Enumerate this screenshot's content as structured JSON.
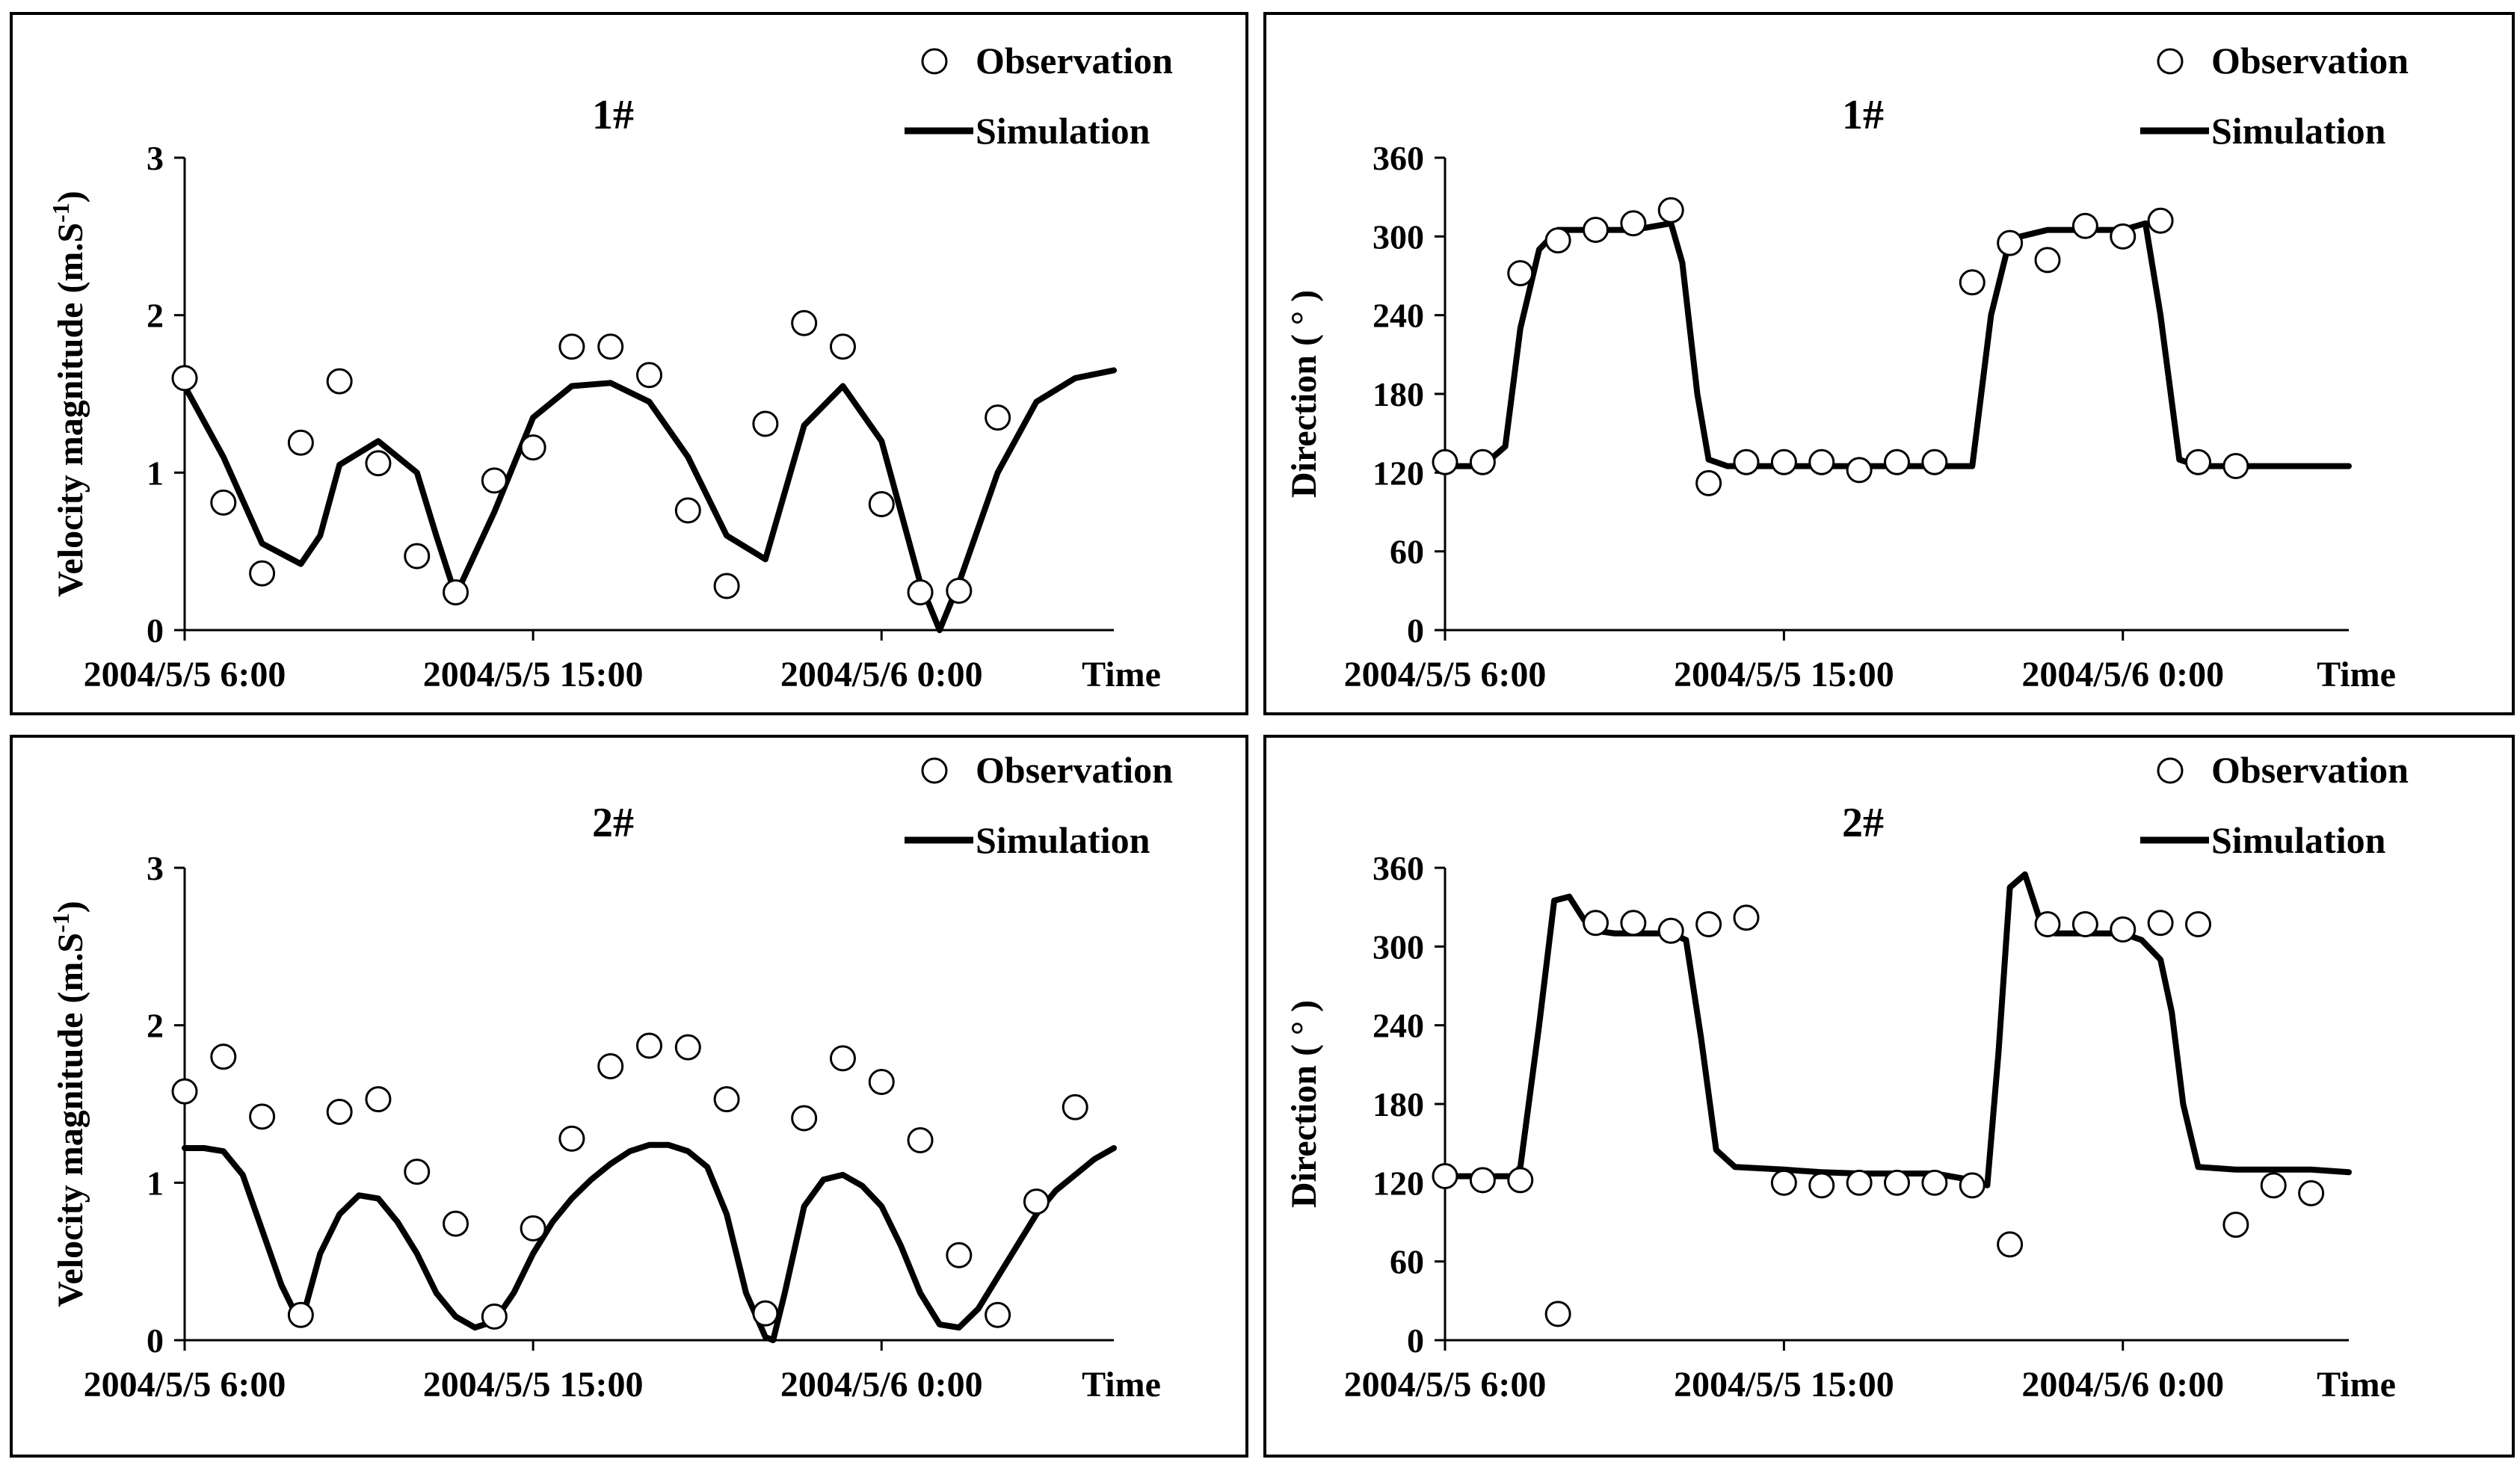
{
  "figure": {
    "x_labels": [
      "2004/5/5 6:00",
      "2004/5/5 15:00",
      "2004/5/6 0:00",
      "Time"
    ],
    "legend": {
      "observation": "Observation",
      "simulation": "Simulation"
    }
  },
  "chart_data": [
    {
      "type": "line",
      "title": "1#",
      "ylabel": "Velocity magnitude (m.S",
      "ylabel_sup": "-1",
      "ylabel_end": ")",
      "yticks": [
        0,
        1,
        2,
        3
      ],
      "ylim": [
        0,
        3
      ],
      "xlim": [
        6,
        30
      ],
      "xticks": [
        6,
        15,
        24
      ],
      "xtick_labels": [
        "2004/5/5 6:00",
        "2004/5/5 15:00",
        "2004/5/6 0:00"
      ],
      "xlabel": "Time",
      "series": [
        {
          "name": "Observation",
          "kind": "scatter",
          "x": [
            6,
            7,
            8,
            9,
            10,
            11,
            12,
            13,
            14,
            15,
            16,
            17,
            18,
            19,
            20,
            21,
            22,
            23,
            24,
            25,
            26,
            27
          ],
          "y": [
            1.6,
            0.81,
            0.36,
            1.19,
            1.58,
            1.06,
            0.47,
            0.24,
            0.95,
            1.16,
            1.8,
            1.8,
            1.62,
            0.76,
            0.28,
            1.31,
            1.95,
            1.8,
            0.8,
            0.24,
            0.25,
            1.35
          ]
        },
        {
          "name": "Simulation",
          "kind": "line",
          "x": [
            6,
            7,
            8,
            9,
            9.5,
            10,
            11,
            12,
            12.5,
            13,
            14,
            15,
            16,
            17,
            18,
            19,
            20,
            21,
            22,
            23,
            24,
            25,
            25.5,
            26,
            27,
            28,
            29,
            30
          ],
          "y": [
            1.55,
            1.1,
            0.55,
            0.42,
            0.6,
            1.05,
            1.2,
            1.0,
            0.6,
            0.22,
            0.75,
            1.35,
            1.55,
            1.57,
            1.45,
            1.1,
            0.6,
            0.45,
            1.3,
            1.55,
            1.2,
            0.3,
            0.0,
            0.3,
            1.0,
            1.45,
            1.6,
            1.65
          ]
        }
      ]
    },
    {
      "type": "line",
      "title": "1#",
      "ylabel": "Direction ( ° )",
      "yticks": [
        0,
        60,
        120,
        180,
        240,
        300,
        360
      ],
      "ylim": [
        0,
        360
      ],
      "xlim": [
        6,
        30
      ],
      "xticks": [
        6,
        15,
        24
      ],
      "xtick_labels": [
        "2004/5/5 6:00",
        "2004/5/5 15:00",
        "2004/5/6 0:00"
      ],
      "xlabel": "Time",
      "series": [
        {
          "name": "Observation",
          "kind": "scatter",
          "x": [
            6,
            7,
            8,
            9,
            10,
            11,
            12,
            13,
            14,
            15,
            16,
            17,
            18,
            19,
            20,
            21,
            22,
            23,
            24,
            25,
            26,
            27
          ],
          "y": [
            128,
            128,
            272,
            297,
            305,
            310,
            320,
            112,
            128,
            128,
            128,
            122,
            128,
            128,
            265,
            295,
            282,
            308,
            300,
            312,
            128,
            125
          ]
        },
        {
          "name": "Simulation",
          "kind": "line",
          "x": [
            6,
            7,
            7.6,
            8,
            8.5,
            9,
            10,
            11,
            12,
            12.3,
            12.7,
            13,
            13.5,
            14,
            15,
            16,
            17,
            18,
            19,
            20,
            20.5,
            21,
            22,
            23,
            24,
            24.6,
            25,
            25.5,
            26,
            27,
            28,
            29,
            30
          ],
          "y": [
            125,
            125,
            140,
            230,
            290,
            305,
            305,
            305,
            310,
            280,
            180,
            130,
            125,
            125,
            125,
            125,
            125,
            125,
            125,
            125,
            240,
            298,
            305,
            305,
            305,
            310,
            240,
            130,
            125,
            125,
            125,
            125,
            125
          ]
        }
      ]
    },
    {
      "type": "line",
      "title": "2#",
      "ylabel": "Velocity magnitude (m.S",
      "ylabel_sup": "-1",
      "ylabel_end": ")",
      "yticks": [
        0,
        1,
        2,
        3
      ],
      "ylim": [
        0,
        3
      ],
      "xlim": [
        6,
        30
      ],
      "xticks": [
        6,
        15,
        24
      ],
      "xtick_labels": [
        "2004/5/5 6:00",
        "2004/5/5 15:00",
        "2004/5/6 0:00"
      ],
      "xlabel": "Time",
      "series": [
        {
          "name": "Observation",
          "kind": "scatter",
          "x": [
            6,
            7,
            8,
            9,
            10,
            11,
            12,
            13,
            14,
            15,
            16,
            17,
            18,
            19,
            20,
            21,
            22,
            23,
            24,
            25,
            26,
            27,
            28,
            29
          ],
          "y": [
            1.58,
            1.8,
            1.42,
            0.16,
            1.45,
            1.53,
            1.07,
            0.74,
            0.15,
            0.71,
            1.28,
            1.74,
            1.87,
            1.86,
            1.53,
            0.17,
            1.41,
            1.79,
            1.64,
            1.27,
            0.54,
            0.16,
            0.88,
            1.48
          ]
        },
        {
          "name": "Simulation",
          "kind": "line",
          "x": [
            6,
            6.5,
            7,
            7.5,
            8,
            8.5,
            9,
            9.5,
            10,
            10.5,
            11,
            11.5,
            12,
            12.5,
            13,
            13.5,
            14,
            14.5,
            15,
            15.5,
            16,
            16.5,
            17,
            17.5,
            18,
            18.5,
            19,
            19.5,
            20,
            20.5,
            21,
            21.2,
            21.5,
            22,
            22.5,
            23,
            23.5,
            24,
            24.5,
            25,
            25.5,
            26,
            26.5,
            27,
            27.5,
            28,
            28.5,
            29,
            29.5,
            30
          ],
          "y": [
            1.22,
            1.22,
            1.2,
            1.05,
            0.7,
            0.35,
            0.1,
            0.55,
            0.8,
            0.92,
            0.9,
            0.75,
            0.55,
            0.3,
            0.15,
            0.08,
            0.12,
            0.3,
            0.55,
            0.75,
            0.9,
            1.02,
            1.12,
            1.2,
            1.24,
            1.24,
            1.2,
            1.1,
            0.8,
            0.3,
            0.02,
            0.0,
            0.3,
            0.85,
            1.02,
            1.05,
            0.98,
            0.85,
            0.6,
            0.3,
            0.1,
            0.08,
            0.2,
            0.4,
            0.6,
            0.8,
            0.95,
            1.05,
            1.15,
            1.22
          ]
        }
      ]
    },
    {
      "type": "line",
      "title": "2#",
      "ylabel": "Direction ( ° )",
      "yticks": [
        0,
        60,
        120,
        180,
        240,
        300,
        360
      ],
      "ylim": [
        0,
        360
      ],
      "xlim": [
        6,
        30
      ],
      "xticks": [
        6,
        15,
        24
      ],
      "xtick_labels": [
        "2004/5/5 6:00",
        "2004/5/5 15:00",
        "2004/5/6 0:00"
      ],
      "xlabel": "Time",
      "series": [
        {
          "name": "Observation",
          "kind": "scatter",
          "x": [
            6,
            7,
            8,
            9,
            10,
            11,
            12,
            13,
            14,
            15,
            16,
            17,
            18,
            19,
            20,
            21,
            22,
            23,
            24,
            25,
            26,
            27,
            28,
            29
          ],
          "y": [
            125,
            122,
            122,
            20,
            318,
            318,
            312,
            317,
            322,
            120,
            118,
            120,
            120,
            120,
            118,
            73,
            317,
            317,
            313,
            318,
            317,
            88,
            118,
            112
          ]
        },
        {
          "name": "Simulation",
          "kind": "line",
          "x": [
            6,
            7,
            7.8,
            8,
            8.5,
            8.9,
            9.3,
            9.7,
            10,
            10.5,
            11,
            12,
            12.4,
            12.8,
            13.2,
            13.7,
            15,
            16,
            17,
            18,
            19,
            20,
            20.4,
            20.7,
            21,
            21.4,
            21.8,
            22.2,
            23,
            24,
            24.5,
            25,
            25.3,
            25.6,
            26,
            27,
            28,
            29,
            30
          ],
          "y": [
            125,
            125,
            125,
            132,
            240,
            335,
            338,
            320,
            312,
            310,
            310,
            310,
            305,
            230,
            145,
            132,
            130,
            128,
            127,
            127,
            127,
            122,
            118,
            220,
            345,
            355,
            320,
            310,
            310,
            310,
            305,
            290,
            250,
            180,
            132,
            130,
            130,
            130,
            128
          ]
        }
      ]
    }
  ]
}
